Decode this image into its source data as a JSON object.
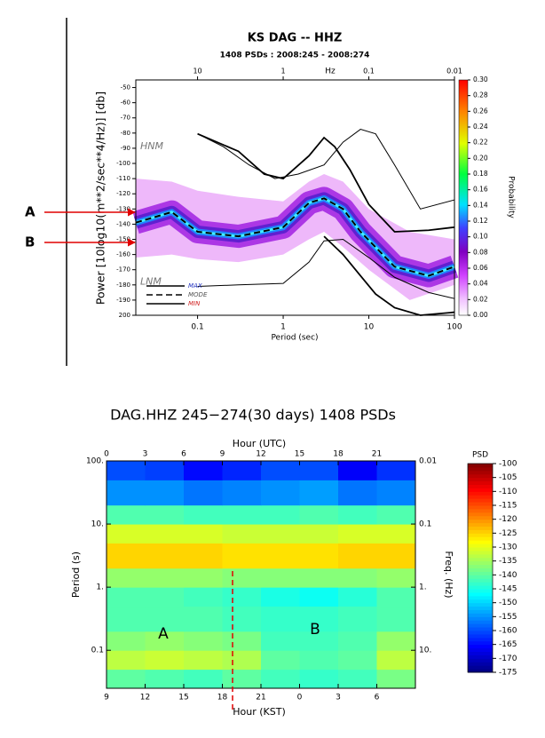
{
  "chart_data": [
    {
      "type": "pdf",
      "title": "KS DAG -- HHZ",
      "subtitle": "1408 PSDs : 2008:245 - 2008:274",
      "x_label": "Period (sec)",
      "y_label": "Power [10log10(m**2/sec**4/Hz)] [db]",
      "x2_label": "Hz",
      "colorbar_label": "Probability",
      "log_x": true,
      "xlim": [
        0.019,
        100
      ],
      "xticks": [
        0.1,
        1,
        10,
        100
      ],
      "x2lim": [
        52.6,
        0.01
      ],
      "x2ticks": [
        10,
        1,
        0.1,
        0.01
      ],
      "ylim": [
        -200,
        -45
      ],
      "yticks": [
        -50,
        -60,
        -70,
        -80,
        -90,
        -100,
        -110,
        -120,
        -130,
        -140,
        -150,
        -160,
        -170,
        -180,
        -190,
        {
          "value": -200,
          "label": "200"
        }
      ],
      "clim": [
        0,
        0.3
      ],
      "cticks": [
        {
          "value": 0,
          "label": "0.00"
        },
        {
          "value": 0.02,
          "label": "0.02"
        },
        {
          "value": 0.04,
          "label": "0.04"
        },
        {
          "value": 0.06,
          "label": "0.06"
        },
        {
          "value": 0.08,
          "label": "0.08"
        },
        {
          "value": 0.1,
          "label": "0.10"
        },
        {
          "value": 0.12,
          "label": "0.12"
        },
        {
          "value": 0.14,
          "label": "0.14"
        },
        {
          "value": 0.16,
          "label": "0.16"
        },
        {
          "value": 0.18,
          "label": "0.18"
        },
        {
          "value": 0.2,
          "label": "0.20"
        },
        {
          "value": 0.22,
          "label": "0.22"
        },
        {
          "value": 0.24,
          "label": "0.24"
        },
        {
          "value": 0.26,
          "label": "0.26"
        },
        {
          "value": 0.28,
          "label": "0.28"
        },
        {
          "value": 0.3,
          "label": "0.30"
        }
      ],
      "density": {
        "x": [
          0.019,
          0.05,
          0.1,
          0.3,
          1,
          2,
          3,
          5,
          10,
          30,
          100
        ],
        "high": [
          -110,
          -112,
          -118,
          -122,
          -125,
          -112,
          -107,
          -112,
          -130,
          -145,
          -150
        ],
        "low": [
          -162,
          -160,
          -163,
          -165,
          -160,
          -150,
          -145,
          -155,
          -170,
          -190,
          -180
        ]
      },
      "series": [
        {
          "name": "MAX",
          "color": "#000000",
          "label_color": "#2030c0",
          "style": "solid",
          "x": [
            0.1,
            0.3,
            0.6,
            1,
            2,
            3,
            4,
            6,
            10,
            20,
            50,
            100
          ],
          "values": [
            -80.5,
            -92,
            -107,
            -110,
            -95,
            -83,
            -89,
            -104,
            -127,
            -145,
            -144,
            -142
          ]
        },
        {
          "name": "MODE",
          "color": "#000000",
          "label_color": "#505050",
          "style": "dashed",
          "x": [
            0.019,
            0.05,
            0.1,
            0.3,
            1,
            2,
            3,
            5,
            8,
            20,
            50,
            100
          ],
          "values": [
            -139,
            -132,
            -145,
            -148,
            -142,
            -126,
            -123,
            -130,
            -145,
            -168,
            -174,
            -168
          ]
        },
        {
          "name": "MIN",
          "color": "#000000",
          "label_color": "#d02020",
          "style": "solid",
          "x": [
            3,
            5,
            8,
            12,
            20,
            40,
            100
          ],
          "values": [
            -148,
            -160,
            -174,
            -186,
            -195,
            -200,
            -198
          ]
        }
      ],
      "reference_lines": [
        {
          "name": "HNM",
          "x": [
            0.1,
            0.2,
            0.4,
            0.8,
            1.5,
            3,
            5,
            8,
            12,
            20,
            40,
            100
          ],
          "values": [
            -80.5,
            -89,
            -101,
            -110,
            -107,
            -101,
            -86,
            -77.5,
            -80.5,
            -101,
            -130,
            -124
          ]
        },
        {
          "name": "LNM",
          "x": [
            0.1,
            0.3,
            1,
            2,
            3,
            5,
            10,
            20,
            50,
            100
          ],
          "values": [
            -181,
            -180,
            -179,
            -165,
            -151,
            -150,
            -162,
            -175,
            -185,
            -189
          ]
        }
      ],
      "markers": [
        "A",
        "B"
      ]
    },
    {
      "type": "heatmap",
      "title": "DAG.HHZ 245−274(30 days) 1408 PSDs",
      "x_label": "Hour (KST)",
      "x2_label": "Hour (UTC)",
      "y_label": "Period (s)",
      "y2_label": "Freq. (Hz)",
      "colorbar_label": "PSD",
      "xlim": [
        0,
        24
      ],
      "x2ticks": [
        0,
        3,
        6,
        9,
        12,
        15,
        18,
        21
      ],
      "xticks": [
        {
          "value": 0,
          "label": "9"
        },
        {
          "value": 3,
          "label": "12"
        },
        {
          "value": 6,
          "label": "15"
        },
        {
          "value": 9,
          "label": "18"
        },
        {
          "value": 12,
          "label": "21"
        },
        {
          "value": 15,
          "label": "0"
        },
        {
          "value": 18,
          "label": "3"
        },
        {
          "value": 21,
          "label": "6"
        }
      ],
      "log_y": true,
      "ylim": [
        0.025,
        100
      ],
      "yticks": [
        {
          "value": 100,
          "label": "100."
        },
        {
          "value": 10,
          "label": "10."
        },
        {
          "value": 1,
          "label": "1."
        },
        0.1
      ],
      "y2lim": [
        40,
        0.01
      ],
      "y2ticks": [
        0.01,
        0.1,
        {
          "value": 1,
          "label": "1."
        },
        {
          "value": 10,
          "label": "10."
        }
      ],
      "clim": [
        -175,
        -100
      ],
      "cticks": [
        -100,
        -105,
        -110,
        -115,
        -120,
        -125,
        -130,
        -135,
        -140,
        -145,
        -150,
        -155,
        -160,
        -165,
        -170,
        -175
      ],
      "x_bins": [
        0,
        3,
        6,
        9,
        12,
        15,
        18,
        21,
        24
      ],
      "y_bins": [
        0.025,
        0.05,
        0.1,
        0.2,
        0.5,
        1,
        2,
        5,
        10,
        20,
        50,
        100
      ],
      "z": [
        [
          -140,
          -141,
          -142,
          -140,
          -142,
          -143,
          -142,
          -138
        ],
        [
          -133,
          -132,
          -133,
          -134,
          -140,
          -141,
          -140,
          -133
        ],
        [
          -137,
          -136,
          -137,
          -138,
          -142,
          -142,
          -141,
          -136
        ],
        [
          -141,
          -141,
          -141,
          -142,
          -143,
          -143,
          -142,
          -141
        ],
        [
          -141,
          -141,
          -142,
          -143,
          -145,
          -146,
          -144,
          -141
        ],
        [
          -136,
          -136,
          -136,
          -137,
          -137,
          -137,
          -137,
          -136
        ],
        [
          -125,
          -125,
          -125,
          -126,
          -126,
          -126,
          -125,
          -125
        ],
        [
          -131,
          -131,
          -131,
          -132,
          -132,
          -132,
          -131,
          -131
        ],
        [
          -141,
          -141,
          -142,
          -142,
          -142,
          -141,
          -142,
          -141
        ],
        [
          -155,
          -155,
          -157,
          -156,
          -155,
          -154,
          -157,
          -156
        ],
        [
          -160,
          -161,
          -165,
          -163,
          -160,
          -160,
          -166,
          -162
        ]
      ],
      "annotations": [
        "A",
        "B"
      ]
    }
  ]
}
